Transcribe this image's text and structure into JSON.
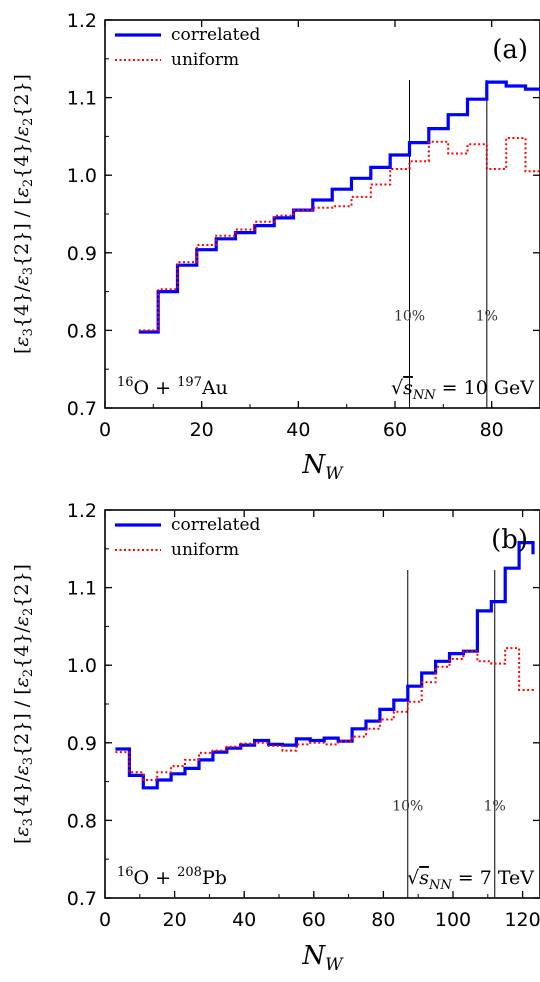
{
  "chart_data": [
    {
      "type": "line",
      "panel_label": "(a)",
      "xlabel": "N_W",
      "ylabel": "[ε3{4}/ε3{2}] / [ε2{4}/ε2{2}]",
      "xlim": [
        0,
        90
      ],
      "ylim": [
        0.7,
        1.2
      ],
      "xticks": [
        "0",
        "20",
        "40",
        "60",
        "80"
      ],
      "yticks": [
        "0.7",
        "0.8",
        "0.9",
        "1.0",
        "1.1",
        "1.2"
      ],
      "system_label": "16O + 197Au",
      "energy_label": "√sNN = 10 GeV",
      "vlines": [
        {
          "x": 63,
          "label": "10%"
        },
        {
          "x": 79,
          "label": "1%"
        }
      ],
      "bin_edges": [
        7,
        11,
        15,
        19,
        23,
        27,
        31,
        35,
        39,
        43,
        47,
        51,
        55,
        59,
        63,
        67,
        71,
        75,
        79,
        83,
        87,
        90
      ],
      "series": [
        {
          "name": "correlated",
          "style": "solid",
          "color": "#0000ff",
          "values": [
            0.798,
            0.85,
            0.884,
            0.904,
            0.918,
            0.926,
            0.935,
            0.945,
            0.955,
            0.968,
            0.982,
            0.996,
            1.01,
            1.026,
            1.042,
            1.06,
            1.078,
            1.098,
            1.12,
            1.115,
            1.111
          ]
        },
        {
          "name": "uniform",
          "style": "dotted",
          "color": "#ff0000",
          "values": [
            0.8,
            0.853,
            0.888,
            0.91,
            0.922,
            0.93,
            0.94,
            0.948,
            0.955,
            0.958,
            0.96,
            0.972,
            0.988,
            1.008,
            1.018,
            1.043,
            1.028,
            1.04,
            1.008,
            1.048,
            1.005
          ]
        }
      ]
    },
    {
      "type": "line",
      "panel_label": "(b)",
      "xlabel": "N_W",
      "ylabel": "[ε3{4}/ε3{2}] / [ε2{4}/ε2{2}]",
      "xlim": [
        0,
        125
      ],
      "ylim": [
        0.7,
        1.2
      ],
      "xticks": [
        "0",
        "20",
        "40",
        "60",
        "80",
        "100",
        "120"
      ],
      "yticks": [
        "0.7",
        "0.8",
        "0.9",
        "1.0",
        "1.1",
        "1.2"
      ],
      "system_label": "16O + 208Pb",
      "energy_label": "√sNN = 7 TeV",
      "vlines": [
        {
          "x": 87,
          "label": "10%"
        },
        {
          "x": 112,
          "label": "1%"
        }
      ],
      "bin_edges": [
        3,
        7,
        11,
        15,
        19,
        23,
        27,
        31,
        35,
        39,
        43,
        47,
        51,
        55,
        59,
        63,
        67,
        71,
        75,
        79,
        83,
        87,
        91,
        95,
        99,
        103,
        107,
        111,
        115,
        119,
        123
      ],
      "series": [
        {
          "name": "correlated",
          "style": "solid",
          "color": "#0000ff",
          "values": [
            0.892,
            0.858,
            0.842,
            0.852,
            0.86,
            0.867,
            0.878,
            0.888,
            0.893,
            0.897,
            0.903,
            0.898,
            0.897,
            0.905,
            0.903,
            0.906,
            0.902,
            0.918,
            0.928,
            0.943,
            0.955,
            0.973,
            0.99,
            1.005,
            1.015,
            1.018,
            1.07,
            1.082,
            1.125,
            1.158,
            1.143
          ]
        },
        {
          "name": "uniform",
          "style": "dotted",
          "color": "#ff0000",
          "values": [
            0.888,
            0.862,
            0.852,
            0.862,
            0.87,
            0.878,
            0.887,
            0.89,
            0.895,
            0.899,
            0.9,
            0.896,
            0.89,
            0.898,
            0.9,
            0.898,
            0.902,
            0.908,
            0.918,
            0.93,
            0.94,
            0.953,
            0.978,
            0.998,
            1.008,
            1.018,
            1.005,
            1.002,
            1.022,
            0.968,
            0.965
          ]
        }
      ]
    }
  ]
}
